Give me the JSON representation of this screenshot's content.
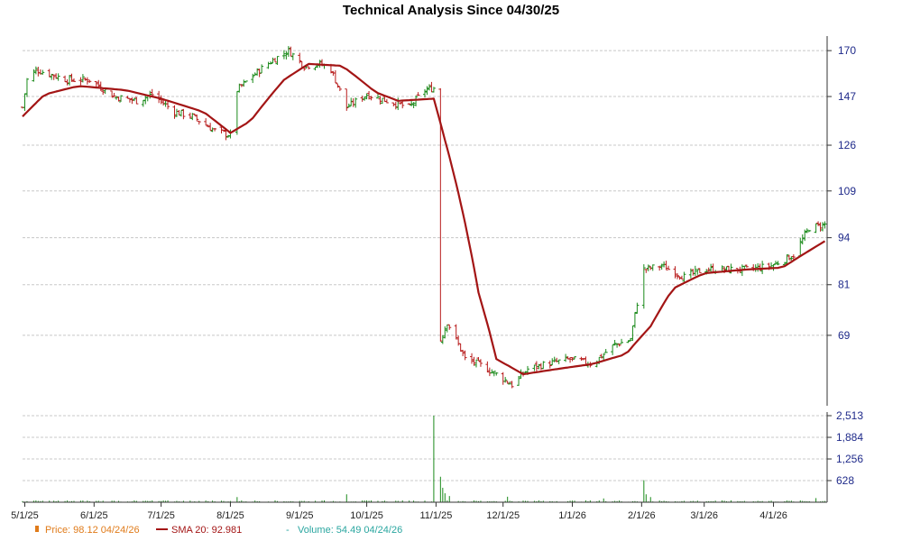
{
  "chart_data": {
    "type": "ohlc",
    "title": "Technical Analysis Since 04/30/25",
    "colors": {
      "up": "#1a8a1a",
      "down": "#b81c1c",
      "sma": "#a31515",
      "volume": "#1a8a1a",
      "price_legend": "#e07b1a",
      "volume_legend": "#2aa6a0",
      "axis_text": "#1f2a8a",
      "grid": "#c8c8c8"
    },
    "grid": true,
    "price_axis": {
      "ticks": [
        "170",
        "147",
        "126",
        "109",
        "94",
        "81",
        "69"
      ],
      "scale": "log",
      "range": [
        56,
        174
      ]
    },
    "volume_axis": {
      "ticks": [
        "2,513",
        "1,884",
        "1,256",
        "628"
      ],
      "range": [
        0,
        2513
      ]
    },
    "x_axis": {
      "ticks": [
        "5/1/25",
        "6/1/25",
        "7/1/25",
        "8/1/25",
        "9/1/25",
        "10/1/25",
        "11/1/25",
        "12/1/25",
        "1/1/26",
        "2/1/26",
        "3/1/26",
        "4/1/26"
      ]
    },
    "x_range": [
      "2025-04-30",
      "2026-04-25"
    ],
    "price_anchors": [
      [
        "2025-04-30",
        142
      ],
      [
        "2025-05-02",
        155
      ],
      [
        "2025-05-06",
        160
      ],
      [
        "2025-05-20",
        155
      ],
      [
        "2025-05-30",
        155
      ],
      [
        "2025-06-10",
        147
      ],
      [
        "2025-06-20",
        145
      ],
      [
        "2025-06-27",
        148
      ],
      [
        "2025-07-07",
        140
      ],
      [
        "2025-07-15",
        138
      ],
      [
        "2025-07-25",
        132
      ],
      [
        "2025-08-01",
        130
      ],
      [
        "2025-08-04",
        150
      ],
      [
        "2025-08-12",
        158
      ],
      [
        "2025-08-20",
        165
      ],
      [
        "2025-08-27",
        170
      ],
      [
        "2025-09-03",
        162
      ],
      [
        "2025-09-10",
        163
      ],
      [
        "2025-09-15",
        160
      ],
      [
        "2025-09-22",
        142
      ],
      [
        "2025-10-01",
        148
      ],
      [
        "2025-10-10",
        145
      ],
      [
        "2025-10-20",
        142
      ],
      [
        "2025-10-27",
        150
      ],
      [
        "2025-10-31",
        151
      ],
      [
        "2025-11-03",
        68
      ],
      [
        "2025-11-06",
        72
      ],
      [
        "2025-11-14",
        64
      ],
      [
        "2025-11-20",
        63
      ],
      [
        "2025-11-28",
        61
      ],
      [
        "2025-12-05",
        59
      ],
      [
        "2025-12-12",
        62
      ],
      [
        "2025-12-20",
        63
      ],
      [
        "2025-12-31",
        64
      ],
      [
        "2026-01-10",
        63
      ],
      [
        "2026-01-20",
        67
      ],
      [
        "2026-01-27",
        68
      ],
      [
        "2026-02-02",
        85
      ],
      [
        "2026-02-10",
        86
      ],
      [
        "2026-02-20",
        83
      ],
      [
        "2026-03-01",
        85
      ],
      [
        "2026-03-10",
        85
      ],
      [
        "2026-03-20",
        85
      ],
      [
        "2026-03-31",
        86
      ],
      [
        "2026-04-10",
        89
      ],
      [
        "2026-04-17",
        97
      ],
      [
        "2026-04-24",
        98
      ]
    ],
    "sma_anchors": [
      [
        "2025-04-30",
        138
      ],
      [
        "2025-05-10",
        148
      ],
      [
        "2025-05-25",
        152
      ],
      [
        "2025-06-15",
        150
      ],
      [
        "2025-07-01",
        146
      ],
      [
        "2025-07-20",
        140
      ],
      [
        "2025-08-01",
        131
      ],
      [
        "2025-08-10",
        136
      ],
      [
        "2025-08-25",
        155
      ],
      [
        "2025-09-05",
        163
      ],
      [
        "2025-09-20",
        162
      ],
      [
        "2025-10-05",
        149
      ],
      [
        "2025-10-15",
        145
      ],
      [
        "2025-10-31",
        146
      ],
      [
        "2025-11-05",
        128
      ],
      [
        "2025-11-12",
        105
      ],
      [
        "2025-11-20",
        79
      ],
      [
        "2025-11-28",
        64
      ],
      [
        "2025-12-10",
        61
      ],
      [
        "2025-12-25",
        62
      ],
      [
        "2026-01-10",
        63
      ],
      [
        "2026-01-25",
        65
      ],
      [
        "2026-02-05",
        71
      ],
      [
        "2026-02-15",
        80
      ],
      [
        "2026-03-01",
        84
      ],
      [
        "2026-03-20",
        85
      ],
      [
        "2026-04-05",
        85.5
      ],
      [
        "2026-04-24",
        92.981
      ]
    ],
    "volume_baseline": 30,
    "volume_spikes": [
      [
        "2025-10-31",
        2513
      ],
      [
        "2025-11-03",
        740
      ],
      [
        "2025-11-04",
        420
      ],
      [
        "2025-11-05",
        260
      ],
      [
        "2025-11-07",
        180
      ],
      [
        "2025-09-22",
        230
      ],
      [
        "2025-08-04",
        150
      ],
      [
        "2025-12-03",
        160
      ],
      [
        "2026-02-02",
        640
      ],
      [
        "2026-02-03",
        230
      ],
      [
        "2026-02-05",
        150
      ],
      [
        "2026-04-20",
        120
      ],
      [
        "2026-01-15",
        110
      ]
    ],
    "legend": [
      {
        "label": "Price: 98.12  04/24/26"
      },
      {
        "label": "SMA 20: 92.981"
      },
      {
        "label": "Volume: 54.49  04/24/26"
      }
    ]
  }
}
